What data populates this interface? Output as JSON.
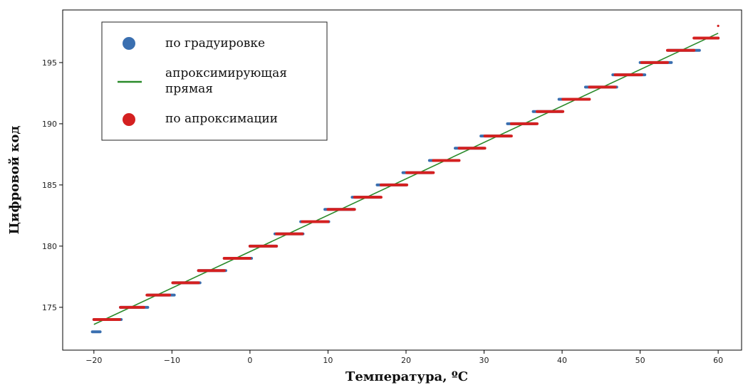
{
  "chart_data": {
    "type": "scatter",
    "xlabel": "Температура, ºC",
    "ylabel": "Цифровой код",
    "xlim": [
      -24,
      63
    ],
    "ylim": [
      171.5,
      199.3
    ],
    "xticks": [
      -20,
      -10,
      0,
      10,
      20,
      30,
      40,
      50,
      60
    ],
    "yticks": [
      175,
      180,
      185,
      190,
      195
    ],
    "xtick_labels": [
      "−20",
      "−10",
      "0",
      "10",
      "20",
      "30",
      "40",
      "50",
      "60"
    ],
    "ytick_labels": [
      "175",
      "180",
      "185",
      "190",
      "195"
    ],
    "grid": false,
    "legend_position": "top-left",
    "series": [
      {
        "name": "по градуировке",
        "kind": "scatter",
        "color": "#3a6fb0",
        "steps": [
          {
            "code": 173,
            "x_from": -20.2,
            "x_to": -19.2
          },
          {
            "code": 174,
            "x_from": -20.0,
            "x_to": -16.5
          },
          {
            "code": 175,
            "x_from": -16.6,
            "x_to": -13.1
          },
          {
            "code": 176,
            "x_from": -13.1,
            "x_to": -9.7
          },
          {
            "code": 177,
            "x_from": -9.8,
            "x_to": -6.4
          },
          {
            "code": 178,
            "x_from": -6.6,
            "x_to": -3.1
          },
          {
            "code": 179,
            "x_from": -3.3,
            "x_to": 0.2
          },
          {
            "code": 180,
            "x_from": 0.0,
            "x_to": 3.4
          },
          {
            "code": 181,
            "x_from": 3.2,
            "x_to": 6.8
          },
          {
            "code": 182,
            "x_from": 6.5,
            "x_to": 10.1
          },
          {
            "code": 183,
            "x_from": 9.6,
            "x_to": 13.3
          },
          {
            "code": 184,
            "x_from": 13.1,
            "x_to": 16.7
          },
          {
            "code": 185,
            "x_from": 16.3,
            "x_to": 20.0
          },
          {
            "code": 186,
            "x_from": 19.6,
            "x_to": 23.3
          },
          {
            "code": 187,
            "x_from": 23.0,
            "x_to": 26.6
          },
          {
            "code": 188,
            "x_from": 26.3,
            "x_to": 29.9
          },
          {
            "code": 189,
            "x_from": 29.6,
            "x_to": 33.3
          },
          {
            "code": 190,
            "x_from": 33.0,
            "x_to": 36.6
          },
          {
            "code": 191,
            "x_from": 36.3,
            "x_to": 40.0
          },
          {
            "code": 192,
            "x_from": 39.6,
            "x_to": 43.4
          },
          {
            "code": 193,
            "x_from": 43.0,
            "x_to": 47.0
          },
          {
            "code": 194,
            "x_from": 46.5,
            "x_to": 50.6
          },
          {
            "code": 195,
            "x_from": 50.0,
            "x_to": 54.0
          },
          {
            "code": 196,
            "x_from": 53.6,
            "x_to": 57.6
          },
          {
            "code": 197,
            "x_from": 57.0,
            "x_to": 60.0
          }
        ]
      },
      {
        "name": "апроксимирующая прямая",
        "kind": "line",
        "color": "#2a8a2a",
        "points": [
          {
            "x": -20,
            "y": 173.6
          },
          {
            "x": 60,
            "y": 197.4
          }
        ]
      },
      {
        "name": "по апроксимации",
        "kind": "scatter",
        "color": "#d42020",
        "steps": [
          {
            "code": 174,
            "x_from": -20.0,
            "x_to": -16.7
          },
          {
            "code": 175,
            "x_from": -16.6,
            "x_to": -13.6
          },
          {
            "code": 176,
            "x_from": -13.2,
            "x_to": -10.3
          },
          {
            "code": 177,
            "x_from": -9.9,
            "x_to": -6.6
          },
          {
            "code": 178,
            "x_from": -6.6,
            "x_to": -3.3
          },
          {
            "code": 179,
            "x_from": -3.3,
            "x_to": 0.0
          },
          {
            "code": 180,
            "x_from": 0.0,
            "x_to": 3.4
          },
          {
            "code": 181,
            "x_from": 3.4,
            "x_to": 6.7
          },
          {
            "code": 182,
            "x_from": 6.7,
            "x_to": 10.0
          },
          {
            "code": 183,
            "x_from": 10.0,
            "x_to": 13.4
          },
          {
            "code": 184,
            "x_from": 13.4,
            "x_to": 16.8
          },
          {
            "code": 185,
            "x_from": 16.8,
            "x_to": 20.1
          },
          {
            "code": 186,
            "x_from": 20.1,
            "x_to": 23.5
          },
          {
            "code": 187,
            "x_from": 23.5,
            "x_to": 26.8
          },
          {
            "code": 188,
            "x_from": 26.8,
            "x_to": 30.1
          },
          {
            "code": 189,
            "x_from": 30.1,
            "x_to": 33.5
          },
          {
            "code": 190,
            "x_from": 33.5,
            "x_to": 36.8
          },
          {
            "code": 191,
            "x_from": 36.8,
            "x_to": 40.1
          },
          {
            "code": 192,
            "x_from": 40.1,
            "x_to": 43.5
          },
          {
            "code": 193,
            "x_from": 43.5,
            "x_to": 46.8
          },
          {
            "code": 194,
            "x_from": 46.8,
            "x_to": 50.2
          },
          {
            "code": 195,
            "x_from": 50.2,
            "x_to": 53.5
          },
          {
            "code": 196,
            "x_from": 53.5,
            "x_to": 56.9
          },
          {
            "code": 197,
            "x_from": 56.9,
            "x_to": 60.0
          }
        ],
        "extra_points": [
          {
            "x": 60.0,
            "y": 198
          }
        ]
      }
    ],
    "legend": [
      {
        "label": "по градуировке",
        "marker": "circle",
        "color": "#3a6fb0"
      },
      {
        "label": "апроксимирующая прямая",
        "label_lines": [
          "апроксимирующая",
          "прямая"
        ],
        "marker": "line",
        "color": "#2a8a2a"
      },
      {
        "label": "по апроксимации",
        "marker": "circle",
        "color": "#d42020"
      }
    ]
  }
}
